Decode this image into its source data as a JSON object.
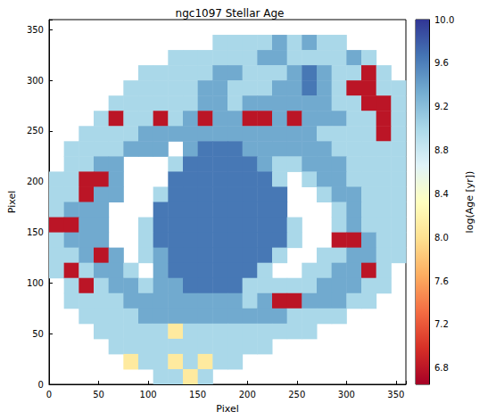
{
  "chart_data": {
    "type": "heatmap",
    "title": "ngc1097 Stellar Age",
    "x_label": "Pixel",
    "y_label": "Pixel",
    "xlim": [
      0,
      360
    ],
    "ylim": [
      0,
      360
    ],
    "xticks": [
      0,
      50,
      100,
      150,
      200,
      250,
      300,
      350
    ],
    "yticks": [
      0,
      50,
      100,
      150,
      200,
      250,
      300,
      350
    ],
    "colorbar_label": "log(Age [yr])",
    "colorbar_range": [
      6.65,
      10.0
    ],
    "colorbar_ticks": [
      6.8,
      7.2,
      7.6,
      {
        "value": 8.0,
        "label": "8.0"
      },
      8.4,
      8.8,
      9.2,
      9.6,
      {
        "value": 10.0,
        "label": "10.0"
      }
    ],
    "x": [
      7.5,
      22.5,
      37.5,
      52.5,
      67.5,
      82.5,
      97.5,
      112.5,
      127.5,
      142.5,
      157.5,
      172.5,
      187.5,
      202.5,
      217.5,
      232.5,
      247.5,
      262.5,
      277.5,
      292.5,
      307.5,
      322.5,
      337.5,
      352.5
    ],
    "y": [
      352.5,
      337.5,
      322.5,
      307.5,
      292.5,
      277.5,
      262.5,
      247.5,
      232.5,
      217.5,
      202.5,
      187.5,
      172.5,
      157.5,
      142.5,
      127.5,
      112.5,
      97.5,
      82.5,
      67.5,
      52.5,
      37.5,
      22.5,
      7.5
    ],
    "values": [
      [
        null,
        null,
        null,
        null,
        null,
        null,
        null,
        null,
        null,
        null,
        null,
        null,
        null,
        null,
        null,
        null,
        null,
        null,
        null,
        null,
        null,
        null,
        null,
        null
      ],
      [
        null,
        null,
        null,
        null,
        null,
        null,
        null,
        null,
        null,
        null,
        null,
        9.0,
        9.0,
        9.0,
        9.0,
        9.35,
        9.0,
        9.35,
        9.0,
        9.0,
        null,
        null,
        null,
        null
      ],
      [
        null,
        null,
        null,
        null,
        null,
        null,
        null,
        null,
        9.0,
        9.0,
        9.0,
        9.0,
        9.0,
        9.0,
        9.35,
        9.35,
        9.0,
        9.0,
        9.0,
        9.0,
        9.35,
        9.0,
        null,
        null
      ],
      [
        null,
        null,
        null,
        null,
        null,
        null,
        9.0,
        9.0,
        9.0,
        9.0,
        9.0,
        9.35,
        9.35,
        9.0,
        9.0,
        9.0,
        9.35,
        9.65,
        9.35,
        9.0,
        9.0,
        6.8,
        9.0,
        null
      ],
      [
        null,
        null,
        null,
        null,
        null,
        9.0,
        9.0,
        9.0,
        9.0,
        9.0,
        9.35,
        9.35,
        9.0,
        9.0,
        9.0,
        9.35,
        9.35,
        9.65,
        9.35,
        9.0,
        6.8,
        6.8,
        9.0,
        9.0
      ],
      [
        null,
        null,
        null,
        null,
        9.0,
        9.0,
        9.0,
        9.0,
        9.0,
        9.0,
        9.35,
        9.35,
        9.0,
        9.35,
        9.35,
        9.35,
        9.35,
        9.35,
        9.35,
        9.0,
        9.0,
        6.8,
        6.8,
        9.0
      ],
      [
        null,
        null,
        null,
        9.0,
        6.8,
        9.0,
        9.0,
        6.8,
        9.0,
        9.35,
        6.8,
        9.35,
        9.35,
        6.8,
        6.8,
        9.35,
        6.8,
        9.35,
        9.35,
        9.35,
        9.0,
        9.0,
        6.8,
        9.0
      ],
      [
        null,
        null,
        9.0,
        9.0,
        9.0,
        9.0,
        9.35,
        9.35,
        9.35,
        9.35,
        9.35,
        9.35,
        9.35,
        9.35,
        9.35,
        9.35,
        9.35,
        9.35,
        9.0,
        9.0,
        9.0,
        9.0,
        6.8,
        9.0
      ],
      [
        null,
        9.0,
        9.0,
        9.0,
        9.0,
        9.35,
        9.35,
        9.35,
        null,
        9.35,
        9.65,
        9.65,
        9.65,
        9.35,
        9.35,
        9.35,
        9.35,
        9.35,
        9.35,
        9.0,
        9.0,
        9.0,
        9.0,
        9.0
      ],
      [
        null,
        9.0,
        9.0,
        9.35,
        9.35,
        null,
        null,
        null,
        9.0,
        9.65,
        9.65,
        9.65,
        9.65,
        9.65,
        9.35,
        9.0,
        9.0,
        9.35,
        9.35,
        9.35,
        9.0,
        9.0,
        9.0,
        9.0
      ],
      [
        9.0,
        9.0,
        6.8,
        6.8,
        9.35,
        null,
        null,
        null,
        9.65,
        9.65,
        9.65,
        9.65,
        9.65,
        9.65,
        9.65,
        9.0,
        null,
        9.0,
        9.35,
        9.35,
        9.0,
        9.0,
        9.0,
        9.0
      ],
      [
        9.0,
        9.0,
        6.8,
        9.35,
        9.35,
        null,
        null,
        9.0,
        9.65,
        9.65,
        9.65,
        9.65,
        9.65,
        9.65,
        9.65,
        9.65,
        null,
        null,
        9.0,
        9.35,
        9.35,
        9.0,
        9.0,
        9.0
      ],
      [
        9.0,
        9.35,
        9.35,
        9.35,
        null,
        null,
        null,
        9.65,
        9.65,
        9.65,
        9.65,
        9.65,
        9.65,
        9.65,
        9.65,
        9.65,
        null,
        null,
        null,
        9.0,
        9.35,
        9.0,
        9.0,
        9.0
      ],
      [
        6.8,
        6.8,
        9.35,
        9.35,
        null,
        null,
        9.0,
        9.65,
        9.65,
        9.65,
        9.65,
        9.65,
        9.65,
        9.65,
        9.65,
        9.65,
        9.0,
        null,
        null,
        9.0,
        9.35,
        9.0,
        9.0,
        9.0
      ],
      [
        9.0,
        9.35,
        9.35,
        9.35,
        null,
        null,
        9.0,
        9.65,
        9.65,
        9.65,
        9.65,
        9.65,
        9.65,
        9.65,
        9.65,
        9.65,
        9.0,
        null,
        null,
        6.8,
        6.8,
        9.35,
        9.0,
        9.0
      ],
      [
        9.0,
        9.0,
        9.35,
        6.8,
        9.35,
        null,
        9.0,
        9.35,
        9.65,
        9.65,
        9.65,
        9.65,
        9.65,
        9.65,
        9.65,
        9.0,
        null,
        null,
        9.0,
        9.0,
        9.35,
        9.35,
        9.0,
        9.0
      ],
      [
        9.0,
        6.8,
        9.0,
        9.35,
        9.35,
        9.0,
        null,
        9.35,
        9.65,
        9.65,
        9.65,
        9.65,
        9.65,
        9.65,
        9.0,
        null,
        null,
        9.0,
        9.0,
        9.35,
        9.35,
        6.8,
        9.0,
        null
      ],
      [
        null,
        9.0,
        6.8,
        9.0,
        9.35,
        9.35,
        9.0,
        9.35,
        9.35,
        9.65,
        9.65,
        9.65,
        9.65,
        9.0,
        9.0,
        9.0,
        9.0,
        9.0,
        9.35,
        9.35,
        9.35,
        9.0,
        9.0,
        null
      ],
      [
        null,
        9.0,
        9.0,
        9.0,
        9.0,
        9.35,
        9.35,
        9.35,
        9.35,
        9.35,
        9.35,
        9.35,
        9.35,
        9.0,
        9.35,
        6.8,
        6.8,
        9.35,
        9.35,
        9.35,
        9.0,
        9.0,
        null,
        null
      ],
      [
        null,
        null,
        9.0,
        9.0,
        9.0,
        9.0,
        9.35,
        9.35,
        9.35,
        9.35,
        9.35,
        9.35,
        9.35,
        9.35,
        9.35,
        9.35,
        9.0,
        9.0,
        9.0,
        9.0,
        null,
        null,
        null,
        null
      ],
      [
        null,
        null,
        null,
        9.0,
        9.0,
        9.0,
        9.0,
        9.0,
        8.1,
        9.0,
        9.0,
        9.0,
        9.0,
        9.0,
        9.0,
        9.0,
        9.0,
        9.0,
        null,
        null,
        null,
        null,
        null,
        null
      ],
      [
        null,
        null,
        null,
        null,
        9.0,
        9.0,
        9.0,
        9.0,
        9.0,
        9.0,
        9.0,
        9.0,
        9.0,
        9.0,
        9.0,
        null,
        null,
        null,
        null,
        null,
        null,
        null,
        null,
        null
      ],
      [
        null,
        null,
        null,
        null,
        null,
        8.1,
        9.0,
        9.0,
        8.1,
        9.0,
        8.1,
        9.0,
        9.0,
        null,
        null,
        null,
        null,
        null,
        null,
        null,
        null,
        null,
        null,
        null
      ],
      [
        null,
        null,
        null,
        null,
        null,
        null,
        null,
        9.0,
        9.0,
        8.1,
        9.0,
        null,
        null,
        null,
        null,
        null,
        null,
        null,
        null,
        null,
        null,
        null,
        null,
        null
      ]
    ]
  }
}
